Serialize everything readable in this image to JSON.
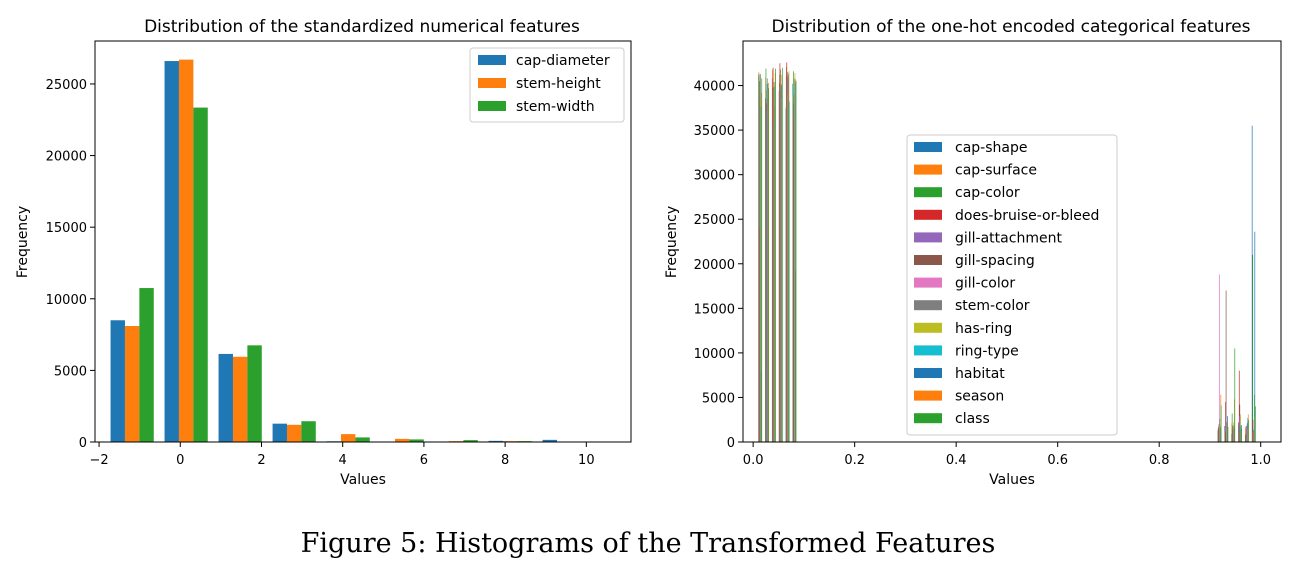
{
  "caption": "Figure 5: Histograms of the Transformed Features",
  "chart_data": [
    {
      "type": "bar",
      "title": "Distribution of the standardized numerical features",
      "xlabel": "Values",
      "ylabel": "Frequency",
      "xlim": [
        -2.1,
        11.1
      ],
      "ylim": [
        0,
        28000
      ],
      "xticks": [
        "−2",
        "0",
        "2",
        "4",
        "6",
        "8",
        "10"
      ],
      "xtick_values": [
        -2,
        0,
        2,
        4,
        6,
        8,
        10
      ],
      "yticks": [
        "0",
        "5000",
        "10000",
        "15000",
        "20000",
        "25000"
      ],
      "ytick_values": [
        0,
        5000,
        10000,
        15000,
        20000,
        25000
      ],
      "legend_position": "top-right",
      "bin_edges": [
        -1.85,
        -0.52,
        0.81,
        2.14,
        3.47,
        4.8,
        6.13,
        7.46,
        8.79,
        10.12
      ],
      "series": [
        {
          "name": "cap-diameter",
          "color": "#1f77b4",
          "values": [
            8500,
            26600,
            6150,
            1280,
            50,
            30,
            20,
            80,
            150,
            0
          ]
        },
        {
          "name": "stem-height",
          "color": "#ff7f0e",
          "values": [
            8100,
            26700,
            5950,
            1200,
            550,
            220,
            60,
            60,
            20,
            0
          ]
        },
        {
          "name": "stem-width",
          "color": "#2ca02c",
          "values": [
            10750,
            23350,
            6750,
            1450,
            320,
            180,
            130,
            60,
            10,
            0
          ]
        }
      ]
    },
    {
      "type": "bar",
      "title": "Distribution of the one-hot encoded categorical features",
      "xlabel": "Values",
      "ylabel": "Frequency",
      "xlim": [
        -0.02,
        1.04
      ],
      "ylim": [
        0,
        45000
      ],
      "xticks": [
        "0.0",
        "0.2",
        "0.4",
        "0.6",
        "0.8",
        "1.0"
      ],
      "xtick_values": [
        0.0,
        0.2,
        0.4,
        0.6,
        0.8,
        1.0
      ],
      "yticks": [
        "0",
        "5000",
        "10000",
        "15000",
        "20000",
        "25000",
        "30000",
        "35000",
        "40000"
      ],
      "ytick_values": [
        0,
        5000,
        10000,
        15000,
        20000,
        25000,
        30000,
        35000,
        40000
      ],
      "legend_position": "center",
      "series": [
        {
          "name": "cap-shape",
          "color": "#1f77b4",
          "zero": [
            41200,
            38600,
            40800,
            39400,
            37500,
            40200
          ],
          "one": [
            1300,
            1800,
            900,
            2200,
            800,
            35500
          ]
        },
        {
          "name": "cap-surface",
          "color": "#ff7f0e",
          "zero": [
            41500,
            40900,
            41800,
            40300,
            41000,
            38900
          ],
          "one": [
            1500,
            1200,
            2100,
            900,
            1600,
            1100
          ]
        },
        {
          "name": "cap-color",
          "color": "#2ca02c",
          "zero": [
            41300,
            41900,
            39800,
            41200,
            42100,
            41600
          ],
          "one": [
            1700,
            1100,
            3200,
            1800,
            900,
            21000
          ]
        },
        {
          "name": "does-bruise-or-bleed",
          "color": "#d62728",
          "zero": [
            24000,
            38000,
            42000,
            42500,
            42600,
            36000
          ],
          "one": [
            1500,
            4500,
            1300,
            8000,
            1800,
            2500
          ]
        },
        {
          "name": "gill-attachment",
          "color": "#9467bd",
          "zero": [
            38500,
            37200,
            35800,
            39800,
            40500,
            38000
          ],
          "one": [
            2000,
            3500,
            1300,
            2900,
            1800,
            1500
          ]
        },
        {
          "name": "gill-spacing",
          "color": "#8c564b",
          "zero": [
            40500,
            39500,
            36000,
            41800,
            41500,
            39000
          ],
          "one": [
            2000,
            17000,
            1800,
            4200,
            1200,
            1300
          ]
        },
        {
          "name": "gill-color",
          "color": "#e377c2",
          "zero": [
            41000,
            40200,
            39800,
            40500,
            41200,
            40800
          ],
          "one": [
            18800,
            2500,
            1900,
            2900,
            1700,
            1200
          ]
        },
        {
          "name": "stem-color",
          "color": "#7f7f7f",
          "zero": [
            41300,
            40800,
            40400,
            39900,
            41000,
            40600
          ],
          "one": [
            2600,
            2200,
            1500,
            1800,
            2100,
            1200
          ]
        },
        {
          "name": "has-ring",
          "color": "#bcbd22",
          "zero": [
            38300,
            39600,
            40100,
            41200,
            39000,
            41400
          ],
          "one": [
            1800,
            1500,
            2200,
            3100,
            1400,
            5300
          ]
        },
        {
          "name": "ring-type",
          "color": "#17becf",
          "zero": [
            37600,
            40200,
            39900,
            38800,
            41300,
            40300
          ],
          "one": [
            1600,
            2300,
            1400,
            1800,
            2700,
            3100
          ]
        },
        {
          "name": "habitat",
          "color": "#1f77b4",
          "zero": [
            7900,
            38500,
            37600,
            40100,
            41000,
            19200
          ],
          "one": [
            1600,
            2900,
            1700,
            1400,
            2300,
            23600
          ]
        },
        {
          "name": "season",
          "color": "#ff7f0e",
          "zero": [
            39200,
            40300,
            41400,
            38600,
            41600,
            40700
          ],
          "one": [
            5300,
            2200,
            4800,
            1300,
            3100,
            2900
          ]
        },
        {
          "name": "class",
          "color": "#2ca02c",
          "zero": [
            40800,
            39700,
            41900,
            42000,
            38200,
            40500
          ],
          "one": [
            4100,
            1700,
            10500,
            1900,
            2500,
            4000
          ]
        }
      ]
    }
  ]
}
